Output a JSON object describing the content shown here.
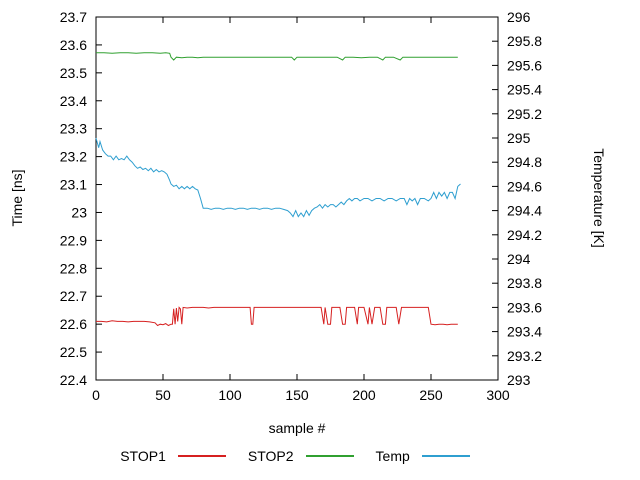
{
  "chart_data": {
    "type": "line",
    "background": "#ffffff",
    "x": {
      "label": "sample #",
      "min": 0,
      "max": 300,
      "ticks": [
        0,
        50,
        100,
        150,
        200,
        250,
        300
      ],
      "tick_labels": [
        "0",
        "50",
        "100",
        "150",
        "200",
        "250",
        "300"
      ]
    },
    "y_left": {
      "label": "Time [ns]",
      "min": 22.4,
      "max": 23.7,
      "ticks": [
        22.4,
        22.5,
        22.6,
        22.7,
        22.8,
        22.9,
        23,
        23.1,
        23.2,
        23.3,
        23.4,
        23.5,
        23.6,
        23.7
      ],
      "tick_labels": [
        "22.4",
        "22.5",
        "22.6",
        "22.7",
        "22.8",
        "22.9",
        "23",
        "23.1",
        "23.2",
        "23.3",
        "23.4",
        "23.5",
        "23.6",
        "23.7"
      ]
    },
    "y_right": {
      "label": "Temperature [K]",
      "min": 293,
      "max": 296,
      "ticks": [
        293,
        293.2,
        293.4,
        293.6,
        293.8,
        294,
        294.2,
        294.4,
        294.6,
        294.8,
        295,
        295.2,
        295.4,
        295.6,
        295.8,
        296
      ],
      "tick_labels": [
        "293",
        "293.2",
        "293.4",
        "293.6",
        "293.8",
        "294",
        "294.2",
        "294.4",
        "294.6",
        "294.8",
        "295",
        "295.2",
        "295.4",
        "295.6",
        "295.8",
        "296"
      ]
    },
    "grid": false,
    "legend_position": "bottom-center",
    "series": [
      {
        "name": "STOP1",
        "axis": "left",
        "color": "#d62020",
        "points": [
          [
            0,
            22.61
          ],
          [
            4,
            22.61
          ],
          [
            8,
            22.608
          ],
          [
            12,
            22.612
          ],
          [
            16,
            22.61
          ],
          [
            20,
            22.61
          ],
          [
            24,
            22.608
          ],
          [
            28,
            22.61
          ],
          [
            32,
            22.61
          ],
          [
            36,
            22.61
          ],
          [
            40,
            22.608
          ],
          [
            44,
            22.605
          ],
          [
            46,
            22.595
          ],
          [
            48,
            22.6
          ],
          [
            50,
            22.598
          ],
          [
            52,
            22.602
          ],
          [
            54,
            22.595
          ],
          [
            56,
            22.6
          ],
          [
            57,
            22.6
          ],
          [
            58,
            22.655
          ],
          [
            59,
            22.6
          ],
          [
            60,
            22.658
          ],
          [
            61,
            22.61
          ],
          [
            62,
            22.66
          ],
          [
            63,
            22.655
          ],
          [
            64,
            22.6
          ],
          [
            65,
            22.66
          ],
          [
            68,
            22.658
          ],
          [
            72,
            22.66
          ],
          [
            76,
            22.66
          ],
          [
            80,
            22.66
          ],
          [
            84,
            22.658
          ],
          [
            88,
            22.66
          ],
          [
            92,
            22.66
          ],
          [
            96,
            22.66
          ],
          [
            100,
            22.66
          ],
          [
            104,
            22.66
          ],
          [
            108,
            22.66
          ],
          [
            112,
            22.66
          ],
          [
            115,
            22.66
          ],
          [
            116,
            22.6
          ],
          [
            117,
            22.6
          ],
          [
            118,
            22.66
          ],
          [
            122,
            22.66
          ],
          [
            128,
            22.66
          ],
          [
            134,
            22.66
          ],
          [
            140,
            22.66
          ],
          [
            146,
            22.66
          ],
          [
            152,
            22.66
          ],
          [
            158,
            22.66
          ],
          [
            164,
            22.66
          ],
          [
            168,
            22.66
          ],
          [
            170,
            22.6
          ],
          [
            171,
            22.66
          ],
          [
            173,
            22.6
          ],
          [
            175,
            22.6
          ],
          [
            176,
            22.66
          ],
          [
            179,
            22.66
          ],
          [
            182,
            22.66
          ],
          [
            184,
            22.6
          ],
          [
            186,
            22.6
          ],
          [
            187,
            22.66
          ],
          [
            190,
            22.66
          ],
          [
            193,
            22.66
          ],
          [
            195,
            22.6
          ],
          [
            196,
            22.66
          ],
          [
            200,
            22.66
          ],
          [
            203,
            22.6
          ],
          [
            204,
            22.66
          ],
          [
            206,
            22.6
          ],
          [
            208,
            22.66
          ],
          [
            212,
            22.66
          ],
          [
            214,
            22.6
          ],
          [
            216,
            22.6
          ],
          [
            217,
            22.66
          ],
          [
            220,
            22.66
          ],
          [
            224,
            22.66
          ],
          [
            226,
            22.6
          ],
          [
            228,
            22.66
          ],
          [
            232,
            22.66
          ],
          [
            236,
            22.66
          ],
          [
            240,
            22.66
          ],
          [
            244,
            22.66
          ],
          [
            248,
            22.66
          ],
          [
            250,
            22.6
          ],
          [
            253,
            22.598
          ],
          [
            256,
            22.6
          ],
          [
            259,
            22.6
          ],
          [
            262,
            22.598
          ],
          [
            265,
            22.6
          ],
          [
            268,
            22.6
          ],
          [
            270,
            22.6
          ]
        ]
      },
      {
        "name": "STOP2",
        "axis": "left",
        "color": "#30a030",
        "points": [
          [
            0,
            23.572
          ],
          [
            6,
            23.572
          ],
          [
            12,
            23.57
          ],
          [
            18,
            23.572
          ],
          [
            24,
            23.572
          ],
          [
            30,
            23.57
          ],
          [
            36,
            23.572
          ],
          [
            42,
            23.572
          ],
          [
            48,
            23.57
          ],
          [
            52,
            23.572
          ],
          [
            55,
            23.57
          ],
          [
            56,
            23.556
          ],
          [
            58,
            23.546
          ],
          [
            60,
            23.556
          ],
          [
            64,
            23.554
          ],
          [
            68,
            23.556
          ],
          [
            72,
            23.556
          ],
          [
            76,
            23.554
          ],
          [
            80,
            23.556
          ],
          [
            86,
            23.556
          ],
          [
            92,
            23.556
          ],
          [
            98,
            23.556
          ],
          [
            104,
            23.556
          ],
          [
            110,
            23.556
          ],
          [
            116,
            23.556
          ],
          [
            122,
            23.556
          ],
          [
            128,
            23.556
          ],
          [
            134,
            23.556
          ],
          [
            140,
            23.556
          ],
          [
            146,
            23.556
          ],
          [
            148,
            23.546
          ],
          [
            150,
            23.556
          ],
          [
            156,
            23.556
          ],
          [
            162,
            23.556
          ],
          [
            168,
            23.556
          ],
          [
            174,
            23.556
          ],
          [
            180,
            23.556
          ],
          [
            184,
            23.546
          ],
          [
            186,
            23.556
          ],
          [
            192,
            23.556
          ],
          [
            198,
            23.554
          ],
          [
            204,
            23.556
          ],
          [
            210,
            23.556
          ],
          [
            214,
            23.546
          ],
          [
            216,
            23.556
          ],
          [
            222,
            23.556
          ],
          [
            227,
            23.546
          ],
          [
            229,
            23.556
          ],
          [
            234,
            23.556
          ],
          [
            240,
            23.556
          ],
          [
            246,
            23.556
          ],
          [
            252,
            23.556
          ],
          [
            258,
            23.556
          ],
          [
            264,
            23.556
          ],
          [
            270,
            23.556
          ]
        ]
      },
      {
        "name": "Temp",
        "axis": "right",
        "color": "#2f9fd0",
        "points": [
          [
            0,
            295.0
          ],
          [
            2,
            294.92
          ],
          [
            3,
            294.97
          ],
          [
            5,
            294.9
          ],
          [
            7,
            294.87
          ],
          [
            9,
            294.85
          ],
          [
            11,
            294.85
          ],
          [
            13,
            294.82
          ],
          [
            15,
            294.85
          ],
          [
            17,
            294.82
          ],
          [
            19,
            294.83
          ],
          [
            21,
            294.82
          ],
          [
            23,
            294.85
          ],
          [
            25,
            294.82
          ],
          [
            27,
            294.8
          ],
          [
            29,
            294.77
          ],
          [
            31,
            294.75
          ],
          [
            33,
            294.76
          ],
          [
            35,
            294.74
          ],
          [
            37,
            294.75
          ],
          [
            39,
            294.73
          ],
          [
            41,
            294.75
          ],
          [
            43,
            294.72
          ],
          [
            45,
            294.74
          ],
          [
            47,
            294.72
          ],
          [
            49,
            294.73
          ],
          [
            51,
            294.72
          ],
          [
            53,
            294.7
          ],
          [
            55,
            294.65
          ],
          [
            56,
            294.62
          ],
          [
            58,
            294.6
          ],
          [
            60,
            294.61
          ],
          [
            62,
            294.58
          ],
          [
            64,
            294.6
          ],
          [
            66,
            294.58
          ],
          [
            68,
            294.6
          ],
          [
            70,
            294.58
          ],
          [
            72,
            294.6
          ],
          [
            74,
            294.58
          ],
          [
            76,
            294.57
          ],
          [
            78,
            294.5
          ],
          [
            80,
            294.42
          ],
          [
            83,
            294.42
          ],
          [
            86,
            294.41
          ],
          [
            89,
            294.42
          ],
          [
            92,
            294.42
          ],
          [
            95,
            294.41
          ],
          [
            98,
            294.42
          ],
          [
            101,
            294.42
          ],
          [
            104,
            294.41
          ],
          [
            107,
            294.42
          ],
          [
            110,
            294.42
          ],
          [
            113,
            294.41
          ],
          [
            116,
            294.42
          ],
          [
            119,
            294.42
          ],
          [
            122,
            294.41
          ],
          [
            125,
            294.42
          ],
          [
            128,
            294.42
          ],
          [
            131,
            294.41
          ],
          [
            134,
            294.42
          ],
          [
            137,
            294.42
          ],
          [
            140,
            294.41
          ],
          [
            143,
            294.4
          ],
          [
            145,
            294.38
          ],
          [
            147,
            294.35
          ],
          [
            149,
            294.4
          ],
          [
            151,
            294.35
          ],
          [
            153,
            294.38
          ],
          [
            155,
            294.35
          ],
          [
            157,
            294.4
          ],
          [
            159,
            294.36
          ],
          [
            161,
            294.4
          ],
          [
            163,
            294.42
          ],
          [
            165,
            294.43
          ],
          [
            167,
            294.45
          ],
          [
            169,
            294.42
          ],
          [
            171,
            294.45
          ],
          [
            173,
            294.43
          ],
          [
            175,
            294.45
          ],
          [
            177,
            294.45
          ],
          [
            179,
            294.43
          ],
          [
            181,
            294.45
          ],
          [
            183,
            294.47
          ],
          [
            185,
            294.45
          ],
          [
            187,
            294.48
          ],
          [
            189,
            294.5
          ],
          [
            191,
            294.48
          ],
          [
            193,
            294.5
          ],
          [
            195,
            294.5
          ],
          [
            197,
            294.48
          ],
          [
            200,
            294.5
          ],
          [
            203,
            294.5
          ],
          [
            206,
            294.48
          ],
          [
            209,
            294.5
          ],
          [
            212,
            294.5
          ],
          [
            215,
            294.48
          ],
          [
            218,
            294.5
          ],
          [
            221,
            294.5
          ],
          [
            224,
            294.48
          ],
          [
            227,
            294.5
          ],
          [
            230,
            294.5
          ],
          [
            232,
            294.45
          ],
          [
            234,
            294.5
          ],
          [
            236,
            294.48
          ],
          [
            238,
            294.5
          ],
          [
            240,
            294.45
          ],
          [
            242,
            294.5
          ],
          [
            245,
            294.5
          ],
          [
            248,
            294.48
          ],
          [
            250,
            294.5
          ],
          [
            252,
            294.55
          ],
          [
            254,
            294.5
          ],
          [
            256,
            294.55
          ],
          [
            258,
            294.52
          ],
          [
            260,
            294.55
          ],
          [
            262,
            294.5
          ],
          [
            264,
            294.55
          ],
          [
            266,
            294.55
          ],
          [
            268,
            294.5
          ],
          [
            270,
            294.6
          ],
          [
            272,
            294.62
          ]
        ]
      }
    ]
  }
}
